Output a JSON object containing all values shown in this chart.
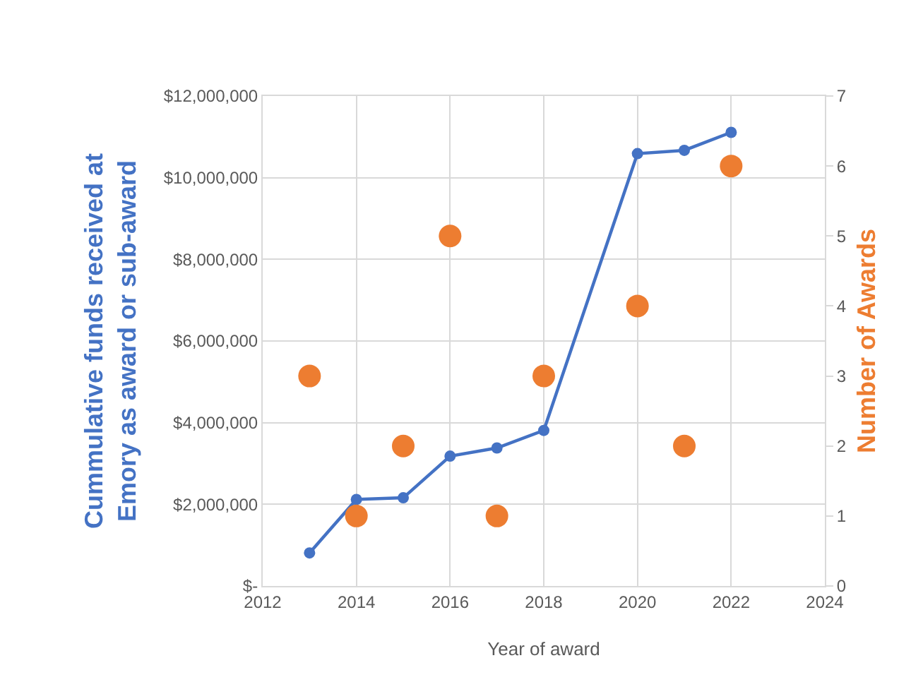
{
  "chart_data": {
    "type": "line",
    "xlabel": "Year of award",
    "ylabel": "Cummulative funds received at Emory as award or sub-award",
    "y2label": "Number of Awards",
    "x": [
      2013,
      2014,
      2015,
      2016,
      2017,
      2018,
      2020,
      2021,
      2022
    ],
    "series": [
      {
        "color": "#4472c4",
        "marker": "circle",
        "values": [
          810000,
          2120000,
          2160000,
          3180000,
          3380000,
          3810000,
          10590000,
          10670000,
          11110000
        ]
      },
      {
        "type": "scatter",
        "axis": "y2",
        "color": "#ed7d31",
        "marker": "circle",
        "values": [
          3,
          1,
          2,
          5,
          1,
          3,
          4,
          2,
          6
        ]
      }
    ],
    "xlim": [
      2012,
      2024
    ],
    "xticks": [
      2012,
      2014,
      2016,
      2018,
      2020,
      2022,
      2024
    ],
    "ylim": [
      0,
      12000000
    ],
    "yticks": [
      {
        "value": 0,
        "label": "$-"
      },
      {
        "value": 2000000,
        "label": "$2,000,000"
      },
      {
        "value": 4000000,
        "label": "$4,000,000"
      },
      {
        "value": 6000000,
        "label": "$6,000,000"
      },
      {
        "value": 8000000,
        "label": "$8,000,000"
      },
      {
        "value": 10000000,
        "label": "$10,000,000"
      },
      {
        "value": 12000000,
        "label": "$12,000,000"
      }
    ],
    "y2lim": [
      0,
      7
    ],
    "y2ticks": [
      0,
      1,
      2,
      3,
      4,
      5,
      6,
      7
    ],
    "grid": true
  }
}
